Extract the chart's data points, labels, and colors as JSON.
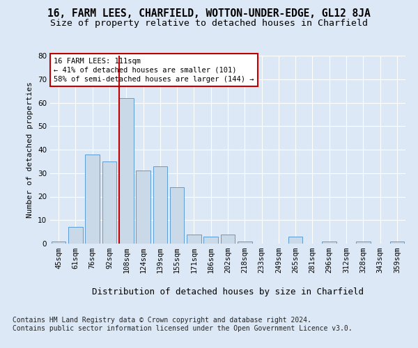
{
  "title": "16, FARM LEES, CHARFIELD, WOTTON-UNDER-EDGE, GL12 8JA",
  "subtitle": "Size of property relative to detached houses in Charfield",
  "xlabel": "Distribution of detached houses by size in Charfield",
  "ylabel": "Number of detached properties",
  "categories": [
    "45sqm",
    "61sqm",
    "76sqm",
    "92sqm",
    "108sqm",
    "124sqm",
    "139sqm",
    "155sqm",
    "171sqm",
    "186sqm",
    "202sqm",
    "218sqm",
    "233sqm",
    "249sqm",
    "265sqm",
    "281sqm",
    "296sqm",
    "312sqm",
    "328sqm",
    "343sqm",
    "359sqm"
  ],
  "values": [
    1,
    7,
    38,
    35,
    62,
    31,
    33,
    24,
    4,
    3,
    4,
    1,
    0,
    0,
    3,
    0,
    1,
    0,
    1,
    0,
    1
  ],
  "bar_color": "#c9d9e8",
  "bar_edge_color": "#5b9bd5",
  "highlight_index": 4,
  "highlight_color": "#c00000",
  "annotation_line1": "16 FARM LEES: 111sqm",
  "annotation_line2": "← 41% of detached houses are smaller (101)",
  "annotation_line3": "58% of semi-detached houses are larger (144) →",
  "annotation_box_color": "#ffffff",
  "annotation_box_edge_color": "#c00000",
  "ylim": [
    0,
    80
  ],
  "yticks": [
    0,
    10,
    20,
    30,
    40,
    50,
    60,
    70,
    80
  ],
  "background_color": "#dce8f5",
  "plot_background_color": "#dce8f5",
  "title_fontsize": 10.5,
  "subtitle_fontsize": 9.5,
  "ylabel_fontsize": 8,
  "xlabel_fontsize": 9,
  "tick_fontsize": 7.5,
  "footer_text": "Contains HM Land Registry data © Crown copyright and database right 2024.\nContains public sector information licensed under the Open Government Licence v3.0.",
  "footer_fontsize": 7
}
